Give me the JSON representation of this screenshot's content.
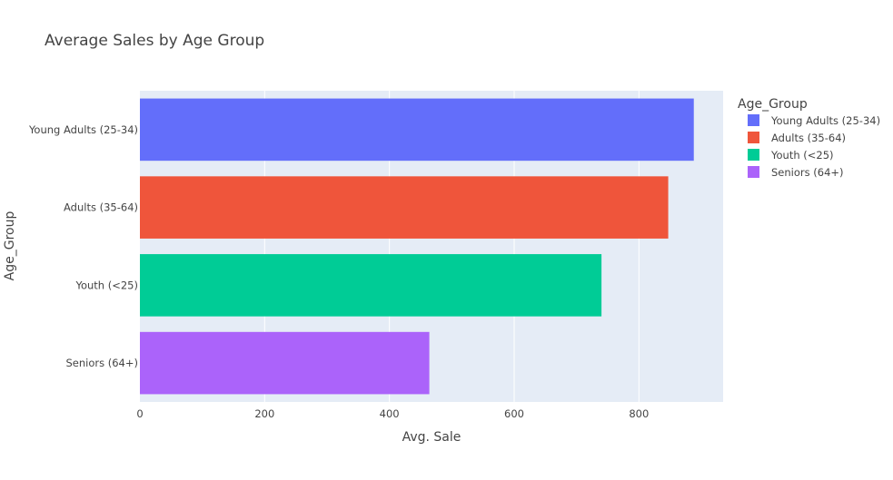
{
  "chart_data": {
    "type": "bar",
    "orientation": "horizontal",
    "title": "Average Sales by Age Group",
    "xlabel": "Avg. Sale",
    "ylabel": "Age_Group",
    "xlim": [
      0,
      935
    ],
    "x_ticks": [
      0,
      200,
      400,
      600,
      800
    ],
    "grid": true,
    "legend_title": "Age_Group",
    "legend_position": "top-right",
    "categories": [
      "Young Adults (25-34)",
      "Adults (35-64)",
      "Youth (<25)",
      "Seniors (64+)"
    ],
    "values": [
      888,
      847,
      740,
      464
    ],
    "colors": [
      "#636efa",
      "#ef553b",
      "#00cc96",
      "#ab63fa"
    ]
  }
}
